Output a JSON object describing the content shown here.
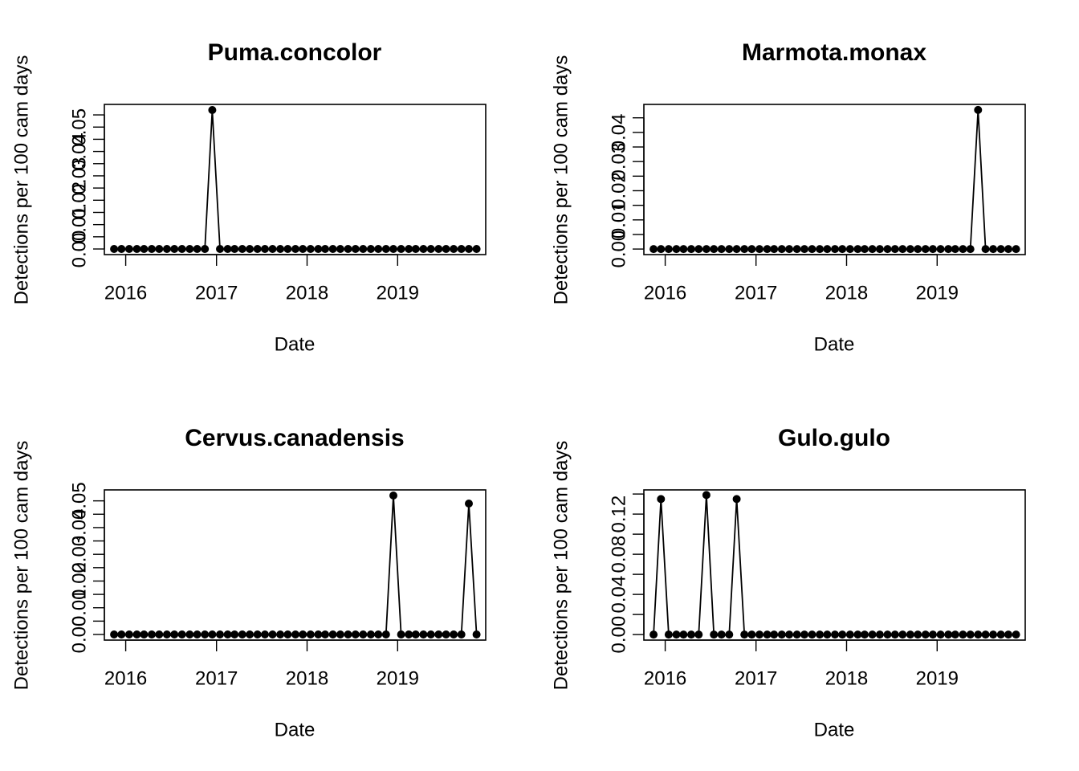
{
  "chart_data": [
    {
      "type": "line",
      "title": "Puma.concolor",
      "xlabel": "Date",
      "ylabel": "Detections per 100 cam days",
      "x_ticks": [
        "2016",
        "2017",
        "2018",
        "2019"
      ],
      "y_ticks": [
        "0.00",
        "0.01",
        "0.02",
        "0.03",
        "0.04",
        "0.05"
      ],
      "xlim": [
        "2015-10-07",
        "2019-12-22"
      ],
      "ylim": [
        -0.0023,
        0.0593
      ],
      "x": [
        "2015-11",
        "2015-12",
        "2016-01",
        "2016-02",
        "2016-03",
        "2016-04",
        "2016-05",
        "2016-06",
        "2016-07",
        "2016-08",
        "2016-09",
        "2016-10",
        "2016-11",
        "2016-12",
        "2017-01",
        "2017-02",
        "2017-03",
        "2017-04",
        "2017-05",
        "2017-06",
        "2017-07",
        "2017-08",
        "2017-09",
        "2017-10",
        "2017-11",
        "2017-12",
        "2018-01",
        "2018-02",
        "2018-03",
        "2018-04",
        "2018-05",
        "2018-06",
        "2018-07",
        "2018-08",
        "2018-09",
        "2018-10",
        "2018-11",
        "2018-12",
        "2019-01",
        "2019-02",
        "2019-03",
        "2019-04",
        "2019-05",
        "2019-06",
        "2019-07",
        "2019-08",
        "2019-09",
        "2019-10",
        "2019-11"
      ],
      "series": [
        {
          "values": [
            0,
            0,
            0,
            0,
            0,
            0,
            0,
            0,
            0,
            0,
            0,
            0,
            0,
            0.057,
            0,
            0,
            0,
            0,
            0,
            0,
            0,
            0,
            0,
            0,
            0,
            0,
            0,
            0,
            0,
            0,
            0,
            0,
            0,
            0,
            0,
            0,
            0,
            0,
            0,
            0,
            0,
            0,
            0,
            0,
            0,
            0,
            0,
            0,
            0
          ]
        }
      ]
    },
    {
      "type": "line",
      "title": "Marmota.monax",
      "xlabel": "Date",
      "ylabel": "Detections per 100 cam days",
      "x_ticks": [
        "2016",
        "2017",
        "2018",
        "2019"
      ],
      "y_ticks": [
        "0.00",
        "0.01",
        "0.02",
        "0.03",
        "0.04"
      ],
      "xlim": [
        "2015-10-07",
        "2019-12-22"
      ],
      "ylim": [
        -0.0019,
        0.0496
      ],
      "x": [
        "2015-11",
        "2015-12",
        "2016-01",
        "2016-02",
        "2016-03",
        "2016-04",
        "2016-05",
        "2016-06",
        "2016-07",
        "2016-08",
        "2016-09",
        "2016-10",
        "2016-11",
        "2016-12",
        "2017-01",
        "2017-02",
        "2017-03",
        "2017-04",
        "2017-05",
        "2017-06",
        "2017-07",
        "2017-08",
        "2017-09",
        "2017-10",
        "2017-11",
        "2017-12",
        "2018-01",
        "2018-02",
        "2018-03",
        "2018-04",
        "2018-05",
        "2018-06",
        "2018-07",
        "2018-08",
        "2018-09",
        "2018-10",
        "2018-11",
        "2018-12",
        "2019-01",
        "2019-02",
        "2019-03",
        "2019-04",
        "2019-05",
        "2019-06",
        "2019-07",
        "2019-08",
        "2019-09",
        "2019-10",
        "2019-11"
      ],
      "series": [
        {
          "values": [
            0,
            0,
            0,
            0,
            0,
            0,
            0,
            0,
            0,
            0,
            0,
            0,
            0,
            0,
            0,
            0,
            0,
            0,
            0,
            0,
            0,
            0,
            0,
            0,
            0,
            0,
            0,
            0,
            0,
            0,
            0,
            0,
            0,
            0,
            0,
            0,
            0,
            0,
            0,
            0,
            0,
            0,
            0,
            0.0477,
            0,
            0,
            0,
            0,
            0
          ]
        }
      ]
    },
    {
      "type": "line",
      "title": "Cervus.canadensis",
      "xlabel": "Date",
      "ylabel": "Detections per 100 cam days",
      "x_ticks": [
        "2016",
        "2017",
        "2018",
        "2019"
      ],
      "y_ticks": [
        "0.00",
        "0.01",
        "0.02",
        "0.03",
        "0.04",
        "0.05"
      ],
      "xlim": [
        "2015-10-07",
        "2019-12-22"
      ],
      "ylim": [
        -0.0021,
        0.0541
      ],
      "x": [
        "2015-11",
        "2015-12",
        "2016-01",
        "2016-02",
        "2016-03",
        "2016-04",
        "2016-05",
        "2016-06",
        "2016-07",
        "2016-08",
        "2016-09",
        "2016-10",
        "2016-11",
        "2016-12",
        "2017-01",
        "2017-02",
        "2017-03",
        "2017-04",
        "2017-05",
        "2017-06",
        "2017-07",
        "2017-08",
        "2017-09",
        "2017-10",
        "2017-11",
        "2017-12",
        "2018-01",
        "2018-02",
        "2018-03",
        "2018-04",
        "2018-05",
        "2018-06",
        "2018-07",
        "2018-08",
        "2018-09",
        "2018-10",
        "2018-11",
        "2018-12",
        "2019-01",
        "2019-02",
        "2019-03",
        "2019-04",
        "2019-05",
        "2019-06",
        "2019-07",
        "2019-08",
        "2019-09",
        "2019-10",
        "2019-11"
      ],
      "series": [
        {
          "values": [
            0,
            0,
            0,
            0,
            0,
            0,
            0,
            0,
            0,
            0,
            0,
            0,
            0,
            0,
            0,
            0,
            0,
            0,
            0,
            0,
            0,
            0,
            0,
            0,
            0,
            0,
            0,
            0,
            0,
            0,
            0,
            0,
            0,
            0,
            0,
            0,
            0,
            0.052,
            0,
            0,
            0,
            0,
            0,
            0,
            0,
            0,
            0,
            0.049,
            0
          ]
        }
      ]
    },
    {
      "type": "line",
      "title": "Gulo.gulo",
      "xlabel": "Date",
      "ylabel": "Detections per 100 cam days",
      "x_ticks": [
        "2016",
        "2017",
        "2018",
        "2019"
      ],
      "y_ticks": [
        "0.00",
        "0.04",
        "0.08",
        "0.12"
      ],
      "xlim": [
        "2015-10-07",
        "2019-12-22"
      ],
      "ylim": [
        -0.0055,
        0.1441
      ],
      "x": [
        "2015-11",
        "2015-12",
        "2016-01",
        "2016-02",
        "2016-03",
        "2016-04",
        "2016-05",
        "2016-06",
        "2016-07",
        "2016-08",
        "2016-09",
        "2016-10",
        "2016-11",
        "2016-12",
        "2017-01",
        "2017-02",
        "2017-03",
        "2017-04",
        "2017-05",
        "2017-06",
        "2017-07",
        "2017-08",
        "2017-09",
        "2017-10",
        "2017-11",
        "2017-12",
        "2018-01",
        "2018-02",
        "2018-03",
        "2018-04",
        "2018-05",
        "2018-06",
        "2018-07",
        "2018-08",
        "2018-09",
        "2018-10",
        "2018-11",
        "2018-12",
        "2019-01",
        "2019-02",
        "2019-03",
        "2019-04",
        "2019-05",
        "2019-06",
        "2019-07",
        "2019-08",
        "2019-09",
        "2019-10",
        "2019-11"
      ],
      "series": [
        {
          "values": [
            0,
            0.135,
            0,
            0,
            0,
            0,
            0,
            0.139,
            0,
            0,
            0,
            0.135,
            0,
            0,
            0,
            0,
            0,
            0,
            0,
            0,
            0,
            0,
            0,
            0,
            0,
            0,
            0,
            0,
            0,
            0,
            0,
            0,
            0,
            0,
            0,
            0,
            0,
            0,
            0,
            0,
            0,
            0,
            0,
            0,
            0,
            0,
            0,
            0,
            0
          ]
        }
      ]
    }
  ]
}
